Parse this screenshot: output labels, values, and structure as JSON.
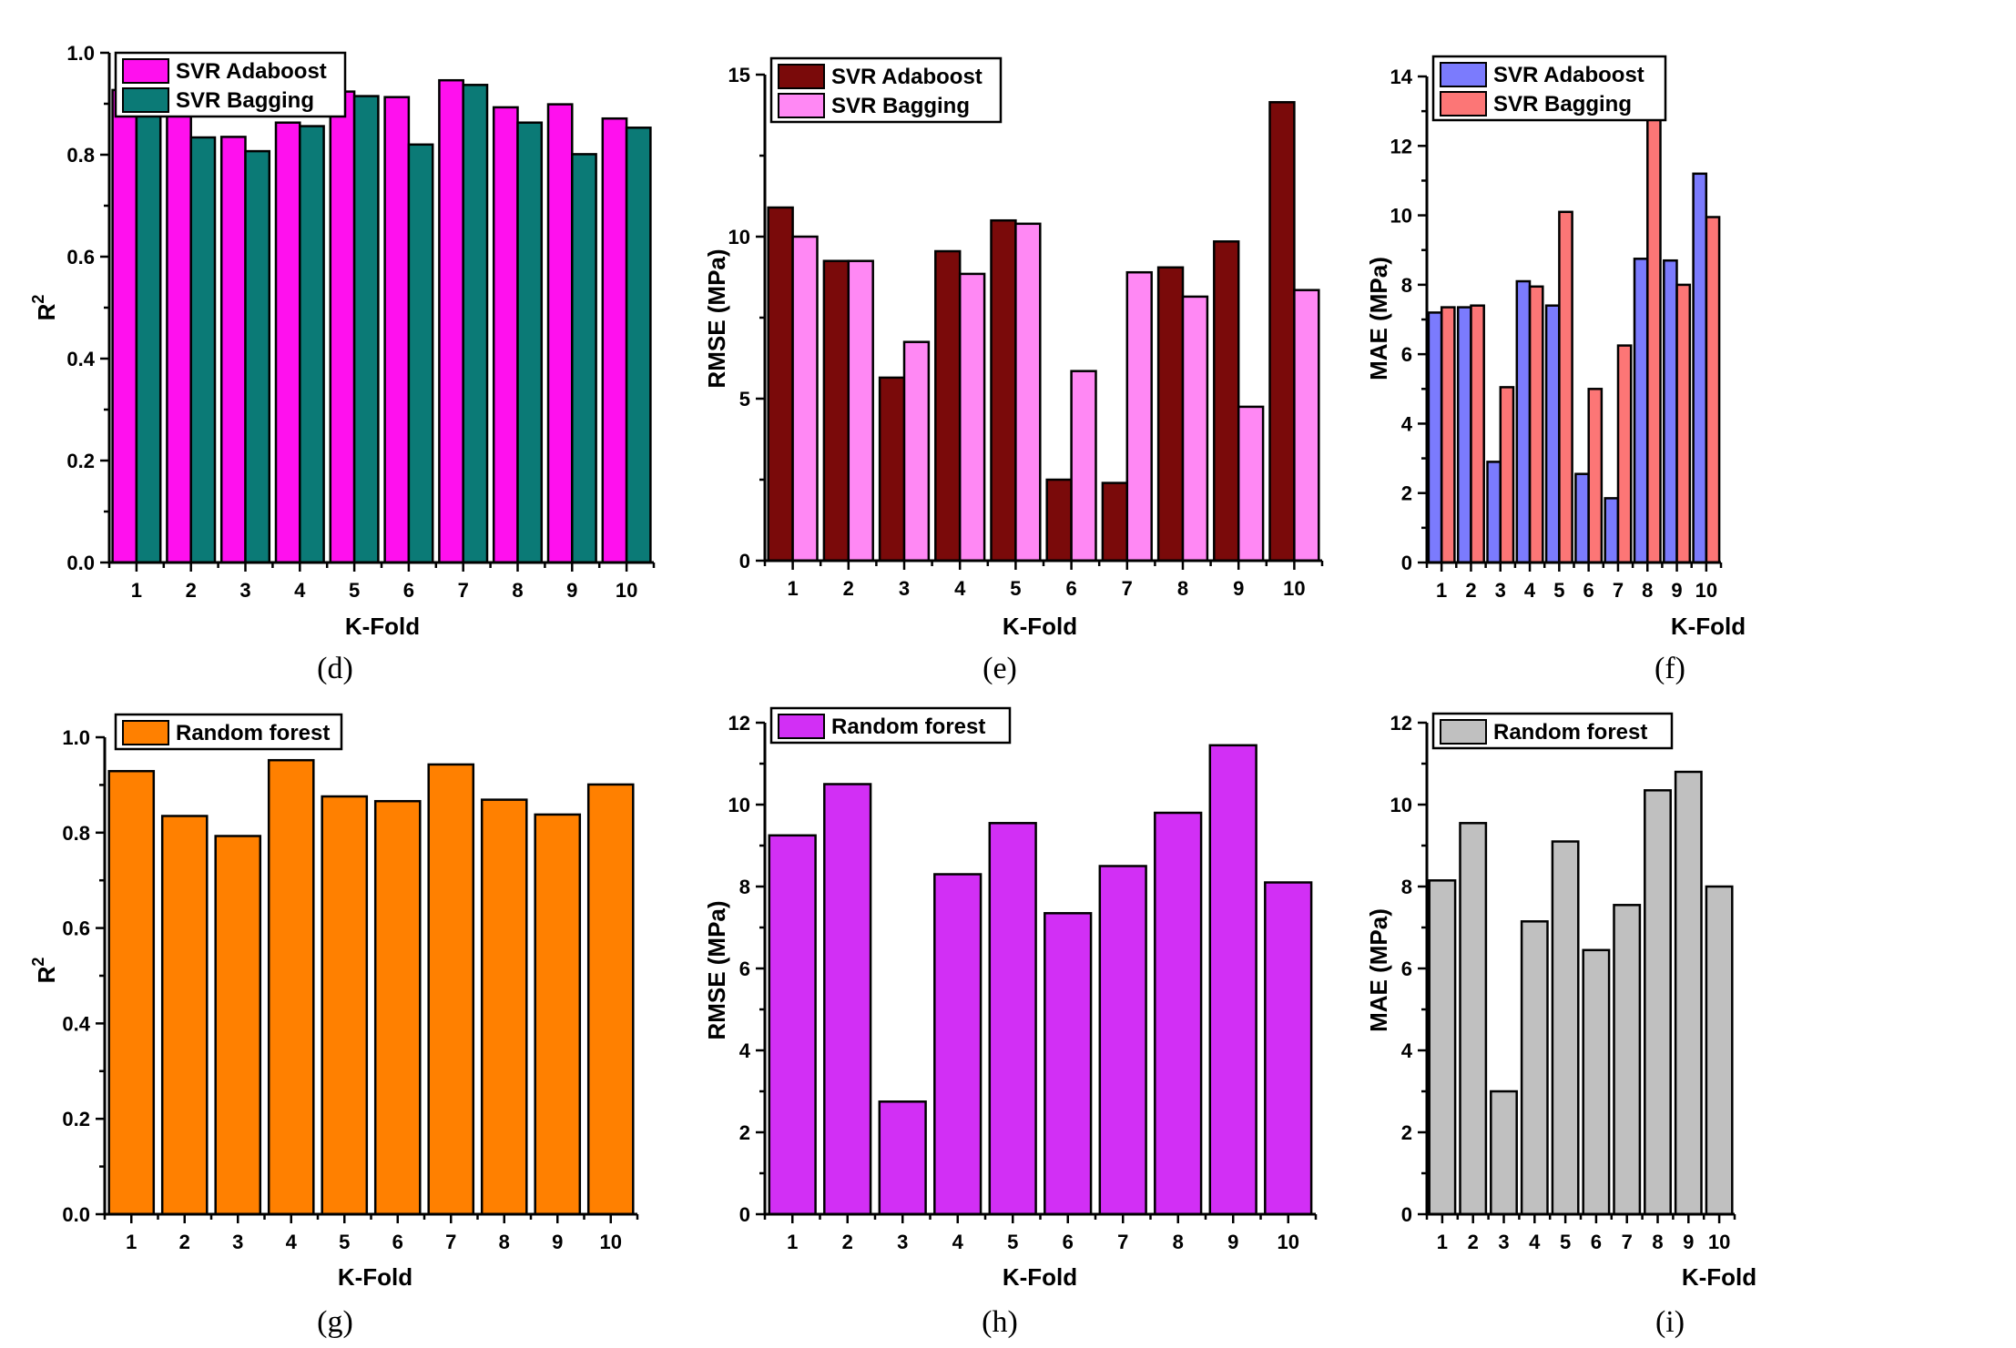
{
  "chart_data": [
    {
      "panel": "(d)",
      "type": "bar",
      "xlabel": "K-Fold",
      "ylabel": "R",
      "ylabel_sup": "2",
      "categories": [
        "1",
        "2",
        "3",
        "4",
        "5",
        "6",
        "7",
        "8",
        "9",
        "10"
      ],
      "ylim": [
        0,
        1.0
      ],
      "yticks": [
        0.0,
        0.2,
        0.4,
        0.6,
        0.8,
        1.0
      ],
      "ytick_labels": [
        "0.0",
        "0.2",
        "0.4",
        "0.6",
        "0.8",
        "1.0"
      ],
      "legend_position": "top-left",
      "series": [
        {
          "name": "SVR Adaboost",
          "color": "#ff10ee",
          "values": [
            0.927,
            0.886,
            0.835,
            0.863,
            0.924,
            0.913,
            0.946,
            0.893,
            0.899,
            0.871
          ]
        },
        {
          "name": "SVR Bagging",
          "color": "#0b7a76",
          "values": [
            0.943,
            0.834,
            0.807,
            0.856,
            0.915,
            0.82,
            0.937,
            0.863,
            0.801,
            0.853
          ]
        }
      ]
    },
    {
      "panel": "(e)",
      "type": "bar",
      "xlabel": "K-Fold",
      "ylabel": "RMSE (MPa)",
      "categories": [
        "1",
        "2",
        "3",
        "4",
        "5",
        "6",
        "7",
        "8",
        "9",
        "10"
      ],
      "ylim": [
        0,
        15
      ],
      "yticks": [
        0,
        5,
        10,
        15
      ],
      "ytick_labels": [
        "0",
        "5",
        "10",
        "15"
      ],
      "legend_position": "top-left",
      "series": [
        {
          "name": "SVR Adaboost",
          "color": "#7a0a0a",
          "values": [
            10.9,
            9.25,
            5.65,
            9.55,
            10.5,
            2.5,
            2.4,
            9.05,
            9.85,
            14.15
          ]
        },
        {
          "name": "SVR Bagging",
          "color": "#ff88f4",
          "values": [
            10.0,
            9.25,
            6.75,
            8.85,
            10.4,
            5.85,
            8.9,
            8.15,
            4.75,
            8.35
          ]
        }
      ]
    },
    {
      "panel": "(f)",
      "type": "bar",
      "xlabel": "K-Fold",
      "ylabel": "MAE (MPa)",
      "categories": [
        "1",
        "2",
        "3",
        "4",
        "5",
        "6",
        "7",
        "8",
        "9",
        "10"
      ],
      "ylim": [
        0,
        14
      ],
      "yticks": [
        0,
        2,
        4,
        6,
        8,
        10,
        12,
        14
      ],
      "ytick_labels": [
        "0",
        "2",
        "4",
        "6",
        "8",
        "10",
        "12",
        "14"
      ],
      "legend_position": "top-left",
      "series": [
        {
          "name": "SVR Adaboost",
          "color": "#7b7bfd",
          "values": [
            7.2,
            7.35,
            2.9,
            8.1,
            7.4,
            2.55,
            1.85,
            8.75,
            8.7,
            11.2
          ]
        },
        {
          "name": "SVR Bagging",
          "color": "#fc7676",
          "values": [
            7.35,
            7.4,
            5.05,
            7.95,
            10.1,
            5.0,
            6.25,
            13.0,
            8.0,
            9.95
          ]
        }
      ]
    },
    {
      "panel": "(g)",
      "type": "bar",
      "xlabel": "K-Fold",
      "ylabel": "R",
      "ylabel_sup": "2",
      "categories": [
        "1",
        "2",
        "3",
        "4",
        "5",
        "6",
        "7",
        "8",
        "9",
        "10"
      ],
      "ylim": [
        0,
        1.0
      ],
      "yticks": [
        0.0,
        0.2,
        0.4,
        0.6,
        0.8,
        1.0
      ],
      "ytick_labels": [
        "0.0",
        "0.2",
        "0.4",
        "0.6",
        "0.8",
        "1.0"
      ],
      "legend_position": "top-left",
      "series": [
        {
          "name": "Random forest",
          "color": "#ff8000",
          "values": [
            0.929,
            0.835,
            0.793,
            0.952,
            0.876,
            0.866,
            0.943,
            0.869,
            0.838,
            0.901
          ]
        }
      ]
    },
    {
      "panel": "(h)",
      "type": "bar",
      "xlabel": "K-Fold",
      "ylabel": "RMSE (MPa)",
      "categories": [
        "1",
        "2",
        "3",
        "4",
        "5",
        "6",
        "7",
        "8",
        "9",
        "10"
      ],
      "ylim": [
        0,
        12
      ],
      "yticks": [
        0,
        2,
        4,
        6,
        8,
        10,
        12
      ],
      "ytick_labels": [
        "0",
        "2",
        "4",
        "6",
        "8",
        "10",
        "12"
      ],
      "legend_position": "top-left",
      "series": [
        {
          "name": "Random forest",
          "color": "#d22ff5",
          "values": [
            9.25,
            10.5,
            2.75,
            8.3,
            9.55,
            7.35,
            8.5,
            9.8,
            11.45,
            8.1
          ]
        }
      ]
    },
    {
      "panel": "(i)",
      "type": "bar",
      "xlabel": "K-Fold",
      "ylabel": "MAE (MPa)",
      "categories": [
        "1",
        "2",
        "3",
        "4",
        "5",
        "6",
        "7",
        "8",
        "9",
        "10"
      ],
      "ylim": [
        0,
        12
      ],
      "yticks": [
        0,
        2,
        4,
        6,
        8,
        10,
        12
      ],
      "ytick_labels": [
        "0",
        "2",
        "4",
        "6",
        "8",
        "10",
        "12"
      ],
      "legend_position": "top-left",
      "series": [
        {
          "name": "Random forest",
          "color": "#c0c0c0",
          "values": [
            8.15,
            9.55,
            3.0,
            7.15,
            9.1,
            6.45,
            7.55,
            10.35,
            10.8,
            8.0
          ]
        }
      ]
    }
  ]
}
